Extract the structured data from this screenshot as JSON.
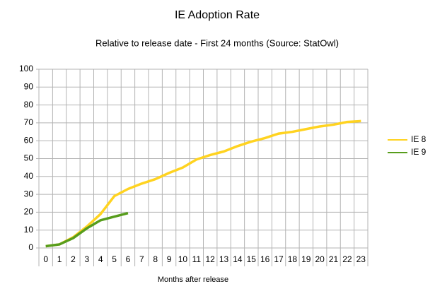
{
  "chart_data": {
    "type": "line",
    "title": "IE Adoption Rate",
    "subtitle": "Relative to release date - First 24 months (Source: StatOwl)",
    "x_label": "Months after release",
    "categories": [
      "0",
      "1",
      "2",
      "3",
      "4",
      "5",
      "6",
      "7",
      "8",
      "9",
      "10",
      "11",
      "12",
      "13",
      "14",
      "15",
      "16",
      "17",
      "18",
      "19",
      "20",
      "21",
      "22",
      "23"
    ],
    "series": [
      {
        "name": "IE 8",
        "color": "#ffd320",
        "values": [
          1,
          2,
          6,
          12,
          19,
          29,
          33,
          36,
          38.5,
          42,
          45,
          49.5,
          52,
          54,
          57,
          59.5,
          61.5,
          64,
          65,
          66.5,
          68,
          69,
          70.5,
          71
        ]
      },
      {
        "name": "IE 9",
        "color": "#579d1c",
        "values": [
          1,
          2,
          5.5,
          11,
          15.5,
          17.5,
          19.5,
          null,
          null,
          null,
          null,
          null,
          null,
          null,
          null,
          null,
          null,
          null,
          null,
          null,
          null,
          null,
          null,
          null
        ]
      }
    ],
    "ylim": [
      0,
      100
    ],
    "yticks": [
      0,
      10,
      20,
      30,
      40,
      50,
      60,
      70,
      80,
      90,
      100
    ],
    "grid": true,
    "legend": "right"
  }
}
